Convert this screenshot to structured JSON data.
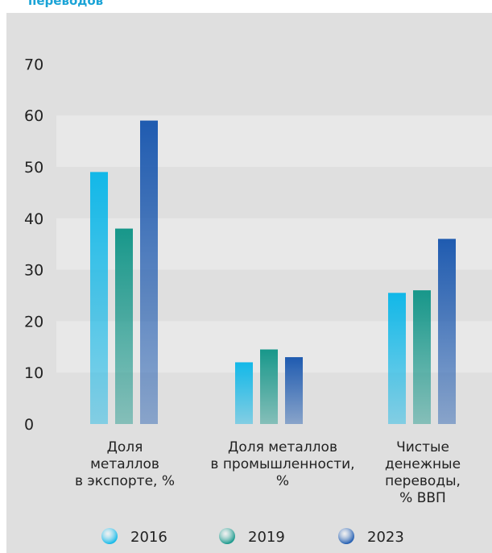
{
  "header": {
    "title_fragment": "переводов"
  },
  "colors": {
    "2016": "#12b8e8",
    "2019": "#17978a",
    "2023": "#1f5bb0",
    "panel_bg": "#dfdfdf",
    "band_bg": "#e8e8e8"
  },
  "chart_data": {
    "type": "bar",
    "categories": [
      [
        "Доля",
        "металлов",
        "в экспорте, %"
      ],
      [
        "Доля металлов",
        "в промышленности,",
        "%"
      ],
      [
        "Чистые",
        "денежные",
        "переводы,",
        "% ВВП"
      ]
    ],
    "series": [
      {
        "name": "2016",
        "values": [
          49,
          12,
          25.5
        ]
      },
      {
        "name": "2019",
        "values": [
          38,
          14.5,
          26
        ]
      },
      {
        "name": "2023",
        "values": [
          59,
          13,
          36
        ]
      }
    ],
    "ylim": [
      0,
      70
    ],
    "yticks": [
      0,
      10,
      20,
      30,
      40,
      50,
      60,
      70
    ],
    "grid": "alternating bands",
    "legend": "bottom"
  }
}
